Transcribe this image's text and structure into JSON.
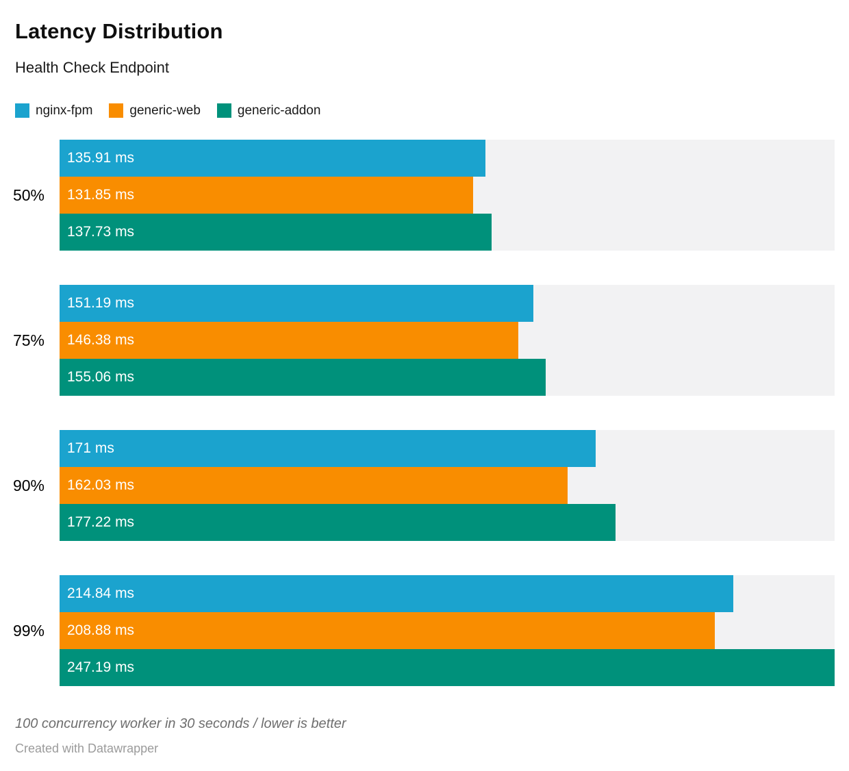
{
  "chart_data": {
    "type": "bar",
    "orientation": "horizontal",
    "title": "Latency Distribution",
    "subtitle": "Health Check Endpoint",
    "categories": [
      "50%",
      "75%",
      "90%",
      "99%"
    ],
    "series": [
      {
        "name": "nginx-fpm",
        "color": "#1BA3CE",
        "values": [
          135.91,
          151.19,
          171,
          214.84
        ],
        "labels": [
          "135.91 ms",
          "151.19 ms",
          "171 ms",
          "214.84 ms"
        ]
      },
      {
        "name": "generic-web",
        "color": "#F98D00",
        "values": [
          131.85,
          146.38,
          162.03,
          208.88
        ],
        "labels": [
          "131.85 ms",
          "146.38 ms",
          "162.03 ms",
          "208.88 ms"
        ]
      },
      {
        "name": "generic-addon",
        "color": "#00917B",
        "values": [
          137.73,
          155.06,
          177.22,
          247.19
        ],
        "labels": [
          "137.73 ms",
          "155.06 ms",
          "177.22 ms",
          "247.19 ms"
        ]
      }
    ],
    "xlim": [
      0,
      247.19
    ],
    "unit": "ms",
    "grid": false,
    "legend_position": "top",
    "value_label_position": "inside-left",
    "track_color": "#F2F2F3"
  },
  "footer": {
    "footnote": "100 concurrency worker in 30 seconds / lower is better",
    "attribution": "Created with Datawrapper"
  }
}
